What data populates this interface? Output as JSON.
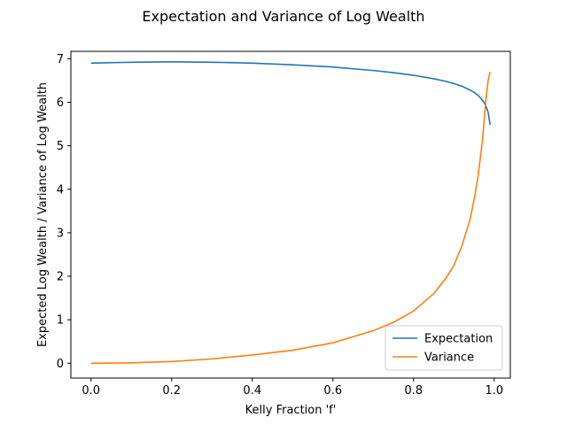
{
  "chart_data": {
    "type": "line",
    "title": "Expectation and Variance of Log Wealth",
    "xlabel": "Kelly Fraction 'f'",
    "ylabel": "Expected Log Wealth / Variance of Log Wealth",
    "xlim": [
      -0.05,
      1.04
    ],
    "ylim": [
      -0.34,
      7.17
    ],
    "xticks": [
      0.0,
      0.2,
      0.4,
      0.6,
      0.8,
      1.0
    ],
    "xtick_labels": [
      "0.0",
      "0.2",
      "0.4",
      "0.6",
      "0.8",
      "1.0"
    ],
    "yticks": [
      0,
      1,
      2,
      3,
      4,
      5,
      6,
      7
    ],
    "ytick_labels": [
      "0",
      "1",
      "2",
      "3",
      "4",
      "5",
      "6",
      "7"
    ],
    "grid": false,
    "legend_position": "lower-right",
    "x": [
      0.0,
      0.1,
      0.2,
      0.3,
      0.4,
      0.5,
      0.6,
      0.7,
      0.75,
      0.8,
      0.85,
      0.88,
      0.9,
      0.92,
      0.94,
      0.95,
      0.96,
      0.97,
      0.975,
      0.98,
      0.985,
      0.99
    ],
    "series": [
      {
        "name": "Expectation",
        "color": "#1f77b4",
        "values": [
          6.9,
          6.92,
          6.93,
          6.92,
          6.9,
          6.86,
          6.81,
          6.73,
          6.68,
          6.62,
          6.54,
          6.48,
          6.43,
          6.37,
          6.28,
          6.23,
          6.16,
          6.06,
          5.99,
          5.9,
          5.77,
          5.48
        ]
      },
      {
        "name": "Variance",
        "color": "#ff7f0e",
        "values": [
          0.0,
          0.01,
          0.04,
          0.1,
          0.19,
          0.3,
          0.47,
          0.75,
          0.94,
          1.2,
          1.6,
          1.95,
          2.25,
          2.7,
          3.3,
          3.75,
          4.3,
          5.05,
          5.55,
          6.1,
          6.5,
          6.7
        ]
      }
    ]
  }
}
